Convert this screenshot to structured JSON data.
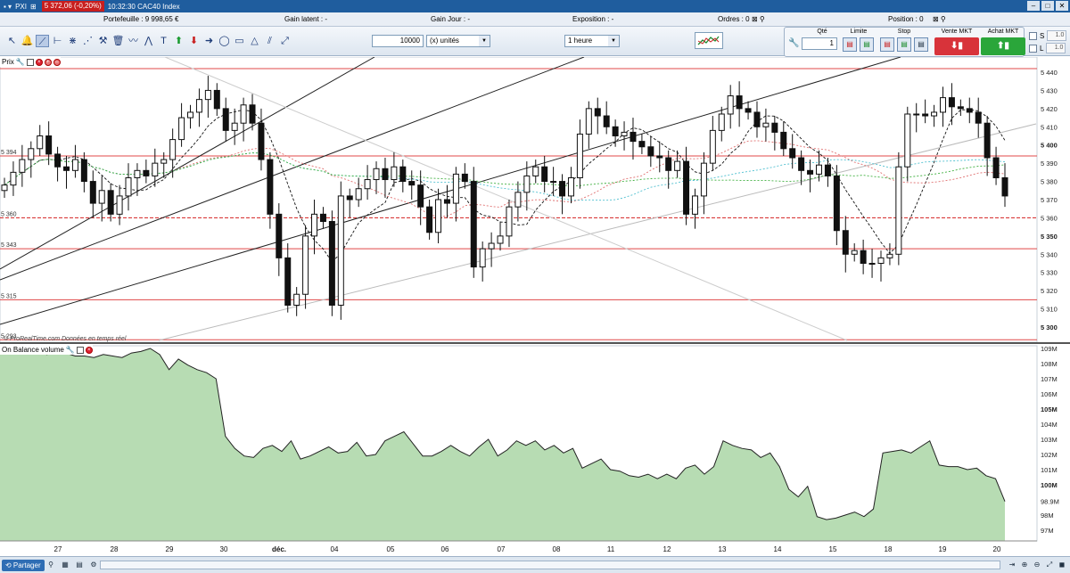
{
  "titlebar": {
    "menu_label": "PXI",
    "quote": "5 372,06 (-0,20%)",
    "time_label": "10:32:30 CAC40 Index"
  },
  "status": {
    "portefeuille": "Portefeuille : 9 998,65 €",
    "gain_latent": "Gain latent : -",
    "gain_jour": "Gain Jour : -",
    "exposition": "Exposition : -",
    "ordres": "Ordres : 0",
    "position": "Position : 0"
  },
  "toolbar": {
    "quantity": "10000",
    "unit_select": "(x) unités",
    "period_select": "1 heure"
  },
  "order_panel": {
    "qty_label": "Qté",
    "qty_value": "1",
    "limit_label": "Limite",
    "stop_label": "Stop",
    "sell_label": "Vente MKT",
    "buy_label": "Achat MKT",
    "s_label": "S",
    "l_label": "L",
    "s_value": "1.0",
    "l_value": "1.0"
  },
  "price_pane": {
    "title": "Prix",
    "watermark": "© ProRealTime.com  Données en temps réel",
    "y_ticks": [
      "5 440",
      "5 430",
      "5 420",
      "5 410",
      "5 400",
      "5 390",
      "5 380",
      "5 370",
      "5 360",
      "5 350",
      "5 340",
      "5 330",
      "5 320",
      "5 310",
      "5 300"
    ],
    "levels": [
      "5 394",
      "5 360",
      "5 343",
      "5 315",
      "5 293"
    ]
  },
  "obv_pane": {
    "title": "On Balance volume",
    "y_ticks": [
      "109M",
      "108M",
      "107M",
      "106M",
      "105M",
      "104M",
      "103M",
      "102M",
      "101M",
      "100M",
      "98.9M",
      "98M",
      "97M"
    ]
  },
  "x_axis": {
    "labels": [
      "27",
      "28",
      "29",
      "30",
      "déc.",
      "04",
      "05",
      "06",
      "07",
      "08",
      "11",
      "12",
      "13",
      "14",
      "15",
      "18",
      "19",
      "20"
    ]
  },
  "chart_data": [
    {
      "type": "candlestick",
      "title": "CAC40 Index",
      "period": "1 heure",
      "ylim": [
        5295,
        5450
      ],
      "y_ticks": [
        5440,
        5430,
        5420,
        5410,
        5400,
        5390,
        5380,
        5370,
        5360,
        5350,
        5340,
        5330,
        5320,
        5310,
        5300
      ],
      "x_labels": [
        "27",
        "28",
        "29",
        "30",
        "déc.",
        "04",
        "05",
        "06",
        "07",
        "08",
        "11",
        "12",
        "13",
        "14",
        "15",
        "18",
        "19",
        "20"
      ],
      "horizontal_levels": [
        5394,
        5360,
        5343,
        5315,
        5293
      ],
      "last_value": 5372.06,
      "close_series": [
        5378,
        5385,
        5392,
        5398,
        5405,
        5395,
        5388,
        5386,
        5392,
        5380,
        5368,
        5375,
        5362,
        5372,
        5382,
        5386,
        5383,
        5390,
        5392,
        5403,
        5415,
        5418,
        5425,
        5430,
        5420,
        5408,
        5412,
        5422,
        5412,
        5392,
        5362,
        5338,
        5312,
        5318,
        5350,
        5362,
        5358,
        5312,
        5372,
        5370,
        5376,
        5381,
        5387,
        5381,
        5388,
        5380,
        5378,
        5366,
        5352,
        5370,
        5368,
        5384,
        5380,
        5333,
        5343,
        5346,
        5350,
        5366,
        5374,
        5383,
        5388,
        5380,
        5380,
        5372,
        5382,
        5406,
        5420,
        5416,
        5410,
        5405,
        5407,
        5402,
        5399,
        5394,
        5393,
        5386,
        5391,
        5362,
        5372,
        5390,
        5408,
        5417,
        5427,
        5420,
        5418,
        5410,
        5412,
        5407,
        5398,
        5393,
        5386,
        5384,
        5389,
        5383,
        5353,
        5340,
        5342,
        5335,
        5335,
        5338,
        5340,
        5388,
        5417,
        5417,
        5416,
        5418,
        5426,
        5421,
        5420,
        5418,
        5412,
        5393,
        5382,
        5372
      ]
    },
    {
      "type": "area",
      "title": "On Balance volume",
      "ylim": [
        96.5,
        109.5
      ],
      "unit": "M",
      "last_value": 98.9,
      "y_ticks": [
        "109M",
        "108M",
        "107M",
        "106M",
        "105M",
        "104M",
        "103M",
        "102M",
        "101M",
        "100M",
        "98.9M",
        "98M",
        "97M"
      ],
      "values": [
        109.0,
        108.9,
        108.7,
        108.9,
        108.8,
        108.6,
        108.9,
        108.7,
        108.5,
        108.5,
        108.4,
        108.6,
        108.5,
        108.4,
        108.7,
        108.8,
        109.0,
        108.6,
        107.6,
        108.3,
        107.9,
        107.6,
        107.4,
        107.0,
        103.2,
        102.4,
        101.9,
        101.8,
        102.4,
        102.6,
        102.2,
        102.9,
        101.7,
        101.9,
        102.2,
        102.5,
        102.1,
        102.2,
        102.8,
        101.9,
        102.0,
        102.9,
        103.2,
        103.5,
        102.7,
        101.9,
        101.9,
        102.2,
        102.6,
        102.2,
        101.9,
        102.5,
        103.0,
        101.9,
        102.3,
        102.9,
        102.6,
        102.9,
        102.3,
        102.6,
        102.1,
        102.4,
        101.1,
        101.4,
        101.7,
        101.0,
        100.9,
        100.6,
        100.5,
        100.7,
        100.4,
        100.7,
        100.4,
        101.1,
        101.3,
        100.7,
        101.2,
        102.9,
        102.6,
        102.4,
        102.3,
        101.8,
        102.1,
        101.2,
        99.7,
        99.2,
        99.9,
        97.9,
        97.7,
        97.8,
        98.0,
        98.2,
        97.9,
        98.4,
        102.1,
        102.2,
        102.3,
        102.1,
        102.5,
        102.9,
        101.3,
        101.2,
        101.2,
        101.0,
        101.1,
        100.6,
        100.4,
        98.9
      ]
    }
  ]
}
